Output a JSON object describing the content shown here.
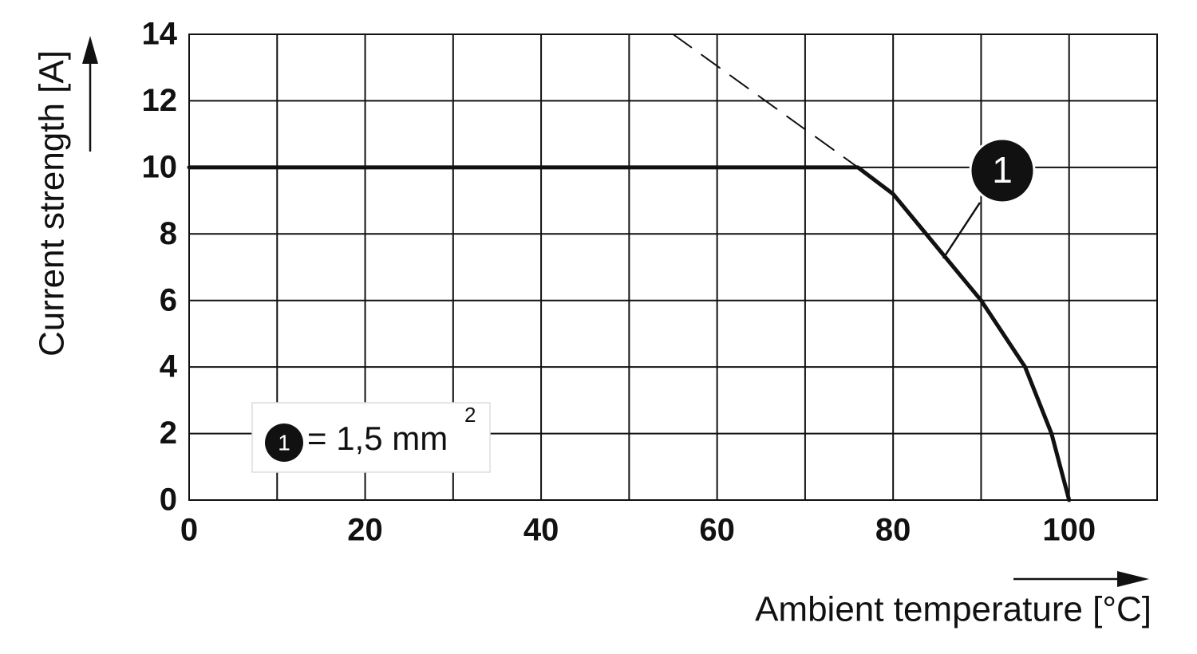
{
  "chart_data": {
    "type": "line",
    "x_label": "Ambient temperature [°C]",
    "y_label": "Current strength [A]",
    "xlim": [
      0,
      110
    ],
    "xticks": [
      0,
      20,
      40,
      60,
      80,
      100
    ],
    "xgrid": [
      10,
      30,
      50,
      70,
      90
    ],
    "ylim": [
      0,
      14
    ],
    "yticks": [
      0,
      2,
      4,
      6,
      8,
      10,
      12,
      14
    ],
    "grid": true,
    "series": [
      {
        "name": "1",
        "color": "#111111",
        "dashed": false,
        "x": [
          0,
          76,
          80,
          85,
          90,
          95,
          98,
          100
        ],
        "values": [
          10,
          10,
          9.2,
          7.6,
          6,
          4,
          2,
          0
        ]
      },
      {
        "color": "#111111",
        "dashed": true,
        "x": [
          55,
          76
        ],
        "values": [
          14,
          10
        ]
      }
    ],
    "legend": {
      "marker": "1",
      "text": "= 1,5 mm",
      "superscript": "2"
    }
  }
}
